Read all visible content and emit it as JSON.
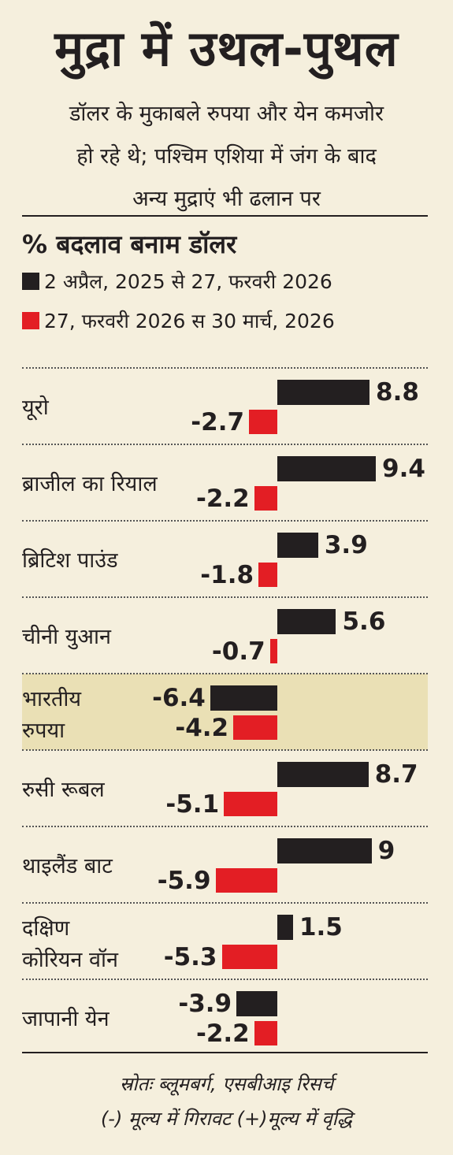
{
  "title": "मुद्रा में उथल-पुथल",
  "subtitle_lines": [
    "डॉलर के मुकाबले रुपया और येन कमजोर",
    "हो रहे थे; पश्चिम एशिया में जंग के बाद",
    "अन्य मुद्राएं भी ढलान पर"
  ],
  "colors": {
    "series1": "#231f20",
    "series2": "#e31e24",
    "highlight": "#eae0b5",
    "background": "#f5efdd"
  },
  "chart_data": {
    "type": "bar",
    "orientation": "horizontal",
    "ylabel": "% बदलाव बनाम डॉलर",
    "categories": [
      "यूरो",
      "ब्राजील का रियाल",
      "ब्रिटिश पाउंड",
      "चीनी युआन",
      "भारतीय रुपया",
      "रुसी रूबल",
      "थाइलैंड बाट",
      "दक्षिण कोरियन वॉन",
      "जापानी येन"
    ],
    "category_lines": [
      [
        "यूरो"
      ],
      [
        "ब्राजील का रियाल"
      ],
      [
        "ब्रिटिश पाउंड"
      ],
      [
        "चीनी युआन"
      ],
      [
        "भारतीय",
        "रुपया"
      ],
      [
        "रुसी रूबल"
      ],
      [
        "थाइलैंड बाट"
      ],
      [
        "दक्षिण",
        "कोरियन वॉन"
      ],
      [
        "जापानी येन"
      ]
    ],
    "highlighted_category": "भारतीय रुपया",
    "series": [
      {
        "name": "2 अप्रैल, 2025 से 27, फरवरी 2026",
        "values": [
          8.8,
          9.4,
          3.9,
          5.6,
          -6.4,
          8.7,
          9,
          1.5,
          -3.9
        ],
        "labels": [
          "8.8",
          "9.4",
          "3.9",
          "5.6",
          "-6.4",
          "8.7",
          "9",
          "1.5",
          "-3.9"
        ]
      },
      {
        "name": "27, फरवरी 2026 स 30 मार्च, 2026",
        "values": [
          -2.7,
          -2.2,
          -1.8,
          -0.7,
          -4.2,
          -5.1,
          -5.9,
          -5.3,
          -2.2
        ],
        "labels": [
          "-2.7",
          "-2.2",
          "-1.8",
          "-0.7",
          "-4.2",
          "-5.1",
          "-5.9",
          "-5.3",
          "-2.2"
        ]
      }
    ]
  },
  "footer": {
    "source": "स्रोतः ब्लूमबर्ग, एसबीआइ रिसर्च",
    "note": "(-) मूल्य में गिरावट (+)मूल्य में वृद्धि"
  }
}
